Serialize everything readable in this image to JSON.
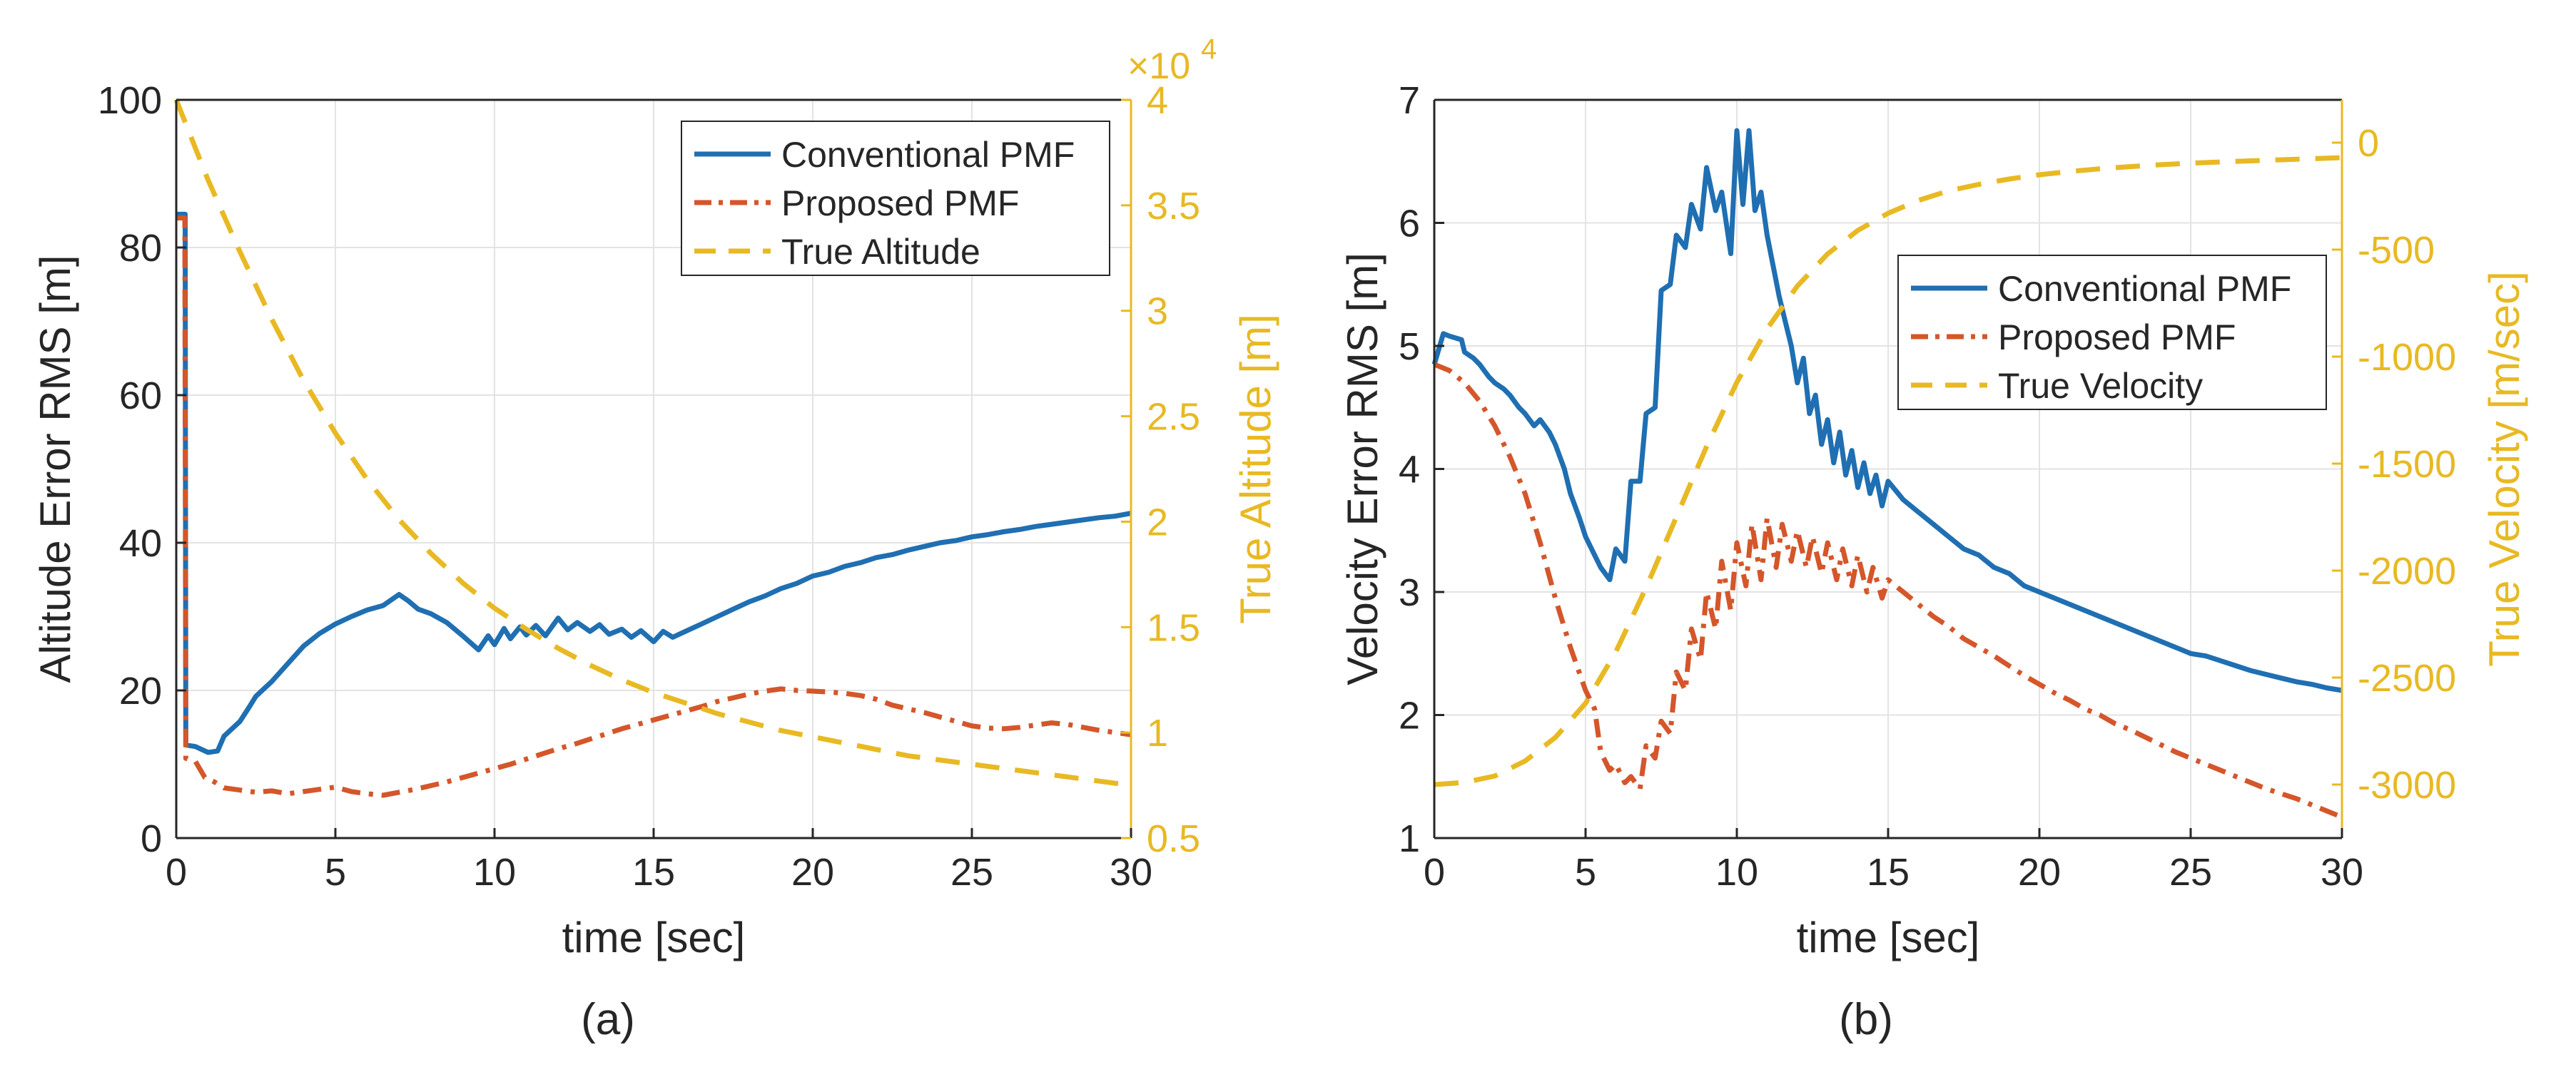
{
  "colors": {
    "conventional": "#1f6fb2",
    "proposed": "#d4562a",
    "true_curve": "#e8b923",
    "axis": "#262626",
    "grid": "#e3e3e3"
  },
  "chart_data": [
    {
      "id": "a",
      "type": "line",
      "caption": "(a)",
      "xlabel": "time [sec]",
      "ylabel": "Altitude Error RMS [m]",
      "y2label": "True Altitude [m]",
      "y2_exponent": "×10",
      "y2_exponent_power": "4",
      "xlim": [
        0,
        30
      ],
      "ylim": [
        0,
        100
      ],
      "y2lim": [
        0.5,
        4
      ],
      "xticks": [
        "0",
        "5",
        "10",
        "15",
        "20",
        "25",
        "30"
      ],
      "yticks": [
        "0",
        "20",
        "40",
        "60",
        "80",
        "100"
      ],
      "y2ticks": [
        "0.5",
        "1",
        "1.5",
        "2",
        "2.5",
        "3",
        "3.5",
        "4"
      ],
      "grid": true,
      "legend_position": "top-right",
      "series": [
        {
          "name": "Conventional PMF",
          "axis": "left",
          "style": "solid",
          "color_key": "conventional",
          "x": [
            0,
            0.28,
            0.28,
            0.3,
            0.3,
            0.6,
            1.0,
            1.3,
            1.5,
            2.0,
            2.3,
            2.5,
            3.0,
            3.5,
            4.0,
            4.5,
            5.0,
            5.5,
            6.0,
            6.5,
            7.0,
            7.3,
            7.6,
            8.0,
            8.5,
            9.0,
            9.5,
            9.8,
            10.0,
            10.3,
            10.5,
            10.8,
            11.0,
            11.3,
            11.6,
            12.0,
            12.3,
            12.6,
            13.0,
            13.3,
            13.6,
            14.0,
            14.3,
            14.6,
            15.0,
            15.3,
            15.6,
            16.0,
            16.5,
            17.0,
            17.5,
            18.0,
            18.5,
            19.0,
            19.5,
            20.0,
            20.5,
            21.0,
            21.5,
            22.0,
            22.5,
            23.0,
            23.5,
            24.0,
            24.5,
            25.0,
            25.5,
            26.0,
            26.5,
            27.0,
            27.5,
            28.0,
            28.5,
            29.0,
            29.5,
            30.0
          ],
          "y": [
            84.5,
            84.5,
            84.5,
            12.6,
            12.6,
            12.4,
            11.6,
            11.8,
            13.8,
            15.8,
            17.8,
            19.2,
            21.2,
            23.6,
            26.0,
            27.7,
            29.0,
            30.0,
            30.9,
            31.5,
            33.0,
            32.1,
            31.0,
            30.4,
            29.2,
            27.4,
            25.5,
            27.4,
            26.2,
            28.4,
            27.0,
            28.6,
            27.5,
            28.8,
            27.4,
            29.8,
            28.2,
            29.2,
            28.0,
            28.9,
            27.6,
            28.3,
            27.2,
            28.1,
            26.6,
            28.0,
            27.2,
            28.0,
            29.0,
            30.0,
            31.0,
            32.0,
            32.8,
            33.8,
            34.5,
            35.5,
            36.0,
            36.8,
            37.3,
            38.0,
            38.4,
            39.0,
            39.5,
            40.0,
            40.3,
            40.8,
            41.1,
            41.5,
            41.8,
            42.2,
            42.5,
            42.8,
            43.1,
            43.4,
            43.6,
            44.0
          ]
        },
        {
          "name": "Proposed PMF",
          "axis": "left",
          "style": "dashdot",
          "color_key": "proposed",
          "x": [
            0,
            0.27,
            0.27,
            0.3,
            0.3,
            0.6,
            0.9,
            1.2,
            1.5,
            2.0,
            2.5,
            3.0,
            3.5,
            4.0,
            4.5,
            5.0,
            5.5,
            6.0,
            6.5,
            7.0,
            7.5,
            8.0,
            8.5,
            9.0,
            9.5,
            10.0,
            10.5,
            11.0,
            11.5,
            12.0,
            12.5,
            13.0,
            13.5,
            14.0,
            14.5,
            15.0,
            15.5,
            16.0,
            16.5,
            17.0,
            17.5,
            18.0,
            18.5,
            19.0,
            19.5,
            20.0,
            20.5,
            21.0,
            21.5,
            22.0,
            22.5,
            23.0,
            23.5,
            24.0,
            24.5,
            25.0,
            25.5,
            26.0,
            26.5,
            27.0,
            27.5,
            28.0,
            28.5,
            29.0,
            29.5,
            30.0
          ],
          "y": [
            84.0,
            84.0,
            84.0,
            10.8,
            10.8,
            10.4,
            8.2,
            7.6,
            6.8,
            6.5,
            6.2,
            6.4,
            6.0,
            6.3,
            6.6,
            6.9,
            6.3,
            6.0,
            5.8,
            6.2,
            6.6,
            7.1,
            7.6,
            8.2,
            8.8,
            9.4,
            10.0,
            10.7,
            11.4,
            12.1,
            12.7,
            13.4,
            14.1,
            14.8,
            15.4,
            16.0,
            16.6,
            17.2,
            17.8,
            18.5,
            19.0,
            19.5,
            19.9,
            20.2,
            20.0,
            19.9,
            19.8,
            19.6,
            19.3,
            18.8,
            18.0,
            17.5,
            17.0,
            16.4,
            15.8,
            15.2,
            14.9,
            14.8,
            15.0,
            15.3,
            15.6,
            15.4,
            15.0,
            14.6,
            14.3,
            14.0
          ]
        },
        {
          "name": "True Altitude",
          "axis": "right",
          "style": "dashed",
          "color_key": "true_curve",
          "x": [
            0,
            1,
            2,
            3,
            4,
            5,
            6,
            7,
            8,
            9,
            10,
            11,
            12,
            13,
            14,
            15,
            16,
            17,
            18,
            19,
            20,
            21,
            22,
            23,
            24,
            25,
            26,
            27,
            28,
            29,
            30
          ],
          "y": [
            4.0,
            3.62,
            3.28,
            2.96,
            2.67,
            2.42,
            2.2,
            2.01,
            1.85,
            1.71,
            1.59,
            1.49,
            1.4,
            1.32,
            1.25,
            1.19,
            1.14,
            1.09,
            1.05,
            1.01,
            0.98,
            0.95,
            0.92,
            0.89,
            0.87,
            0.85,
            0.83,
            0.81,
            0.79,
            0.77,
            0.75
          ]
        }
      ]
    },
    {
      "id": "b",
      "type": "line",
      "caption": "(b)",
      "xlabel": "time [sec]",
      "ylabel": "Velocity Error RMS [m]",
      "y2label": "True Velocity [m/sec]",
      "xlim": [
        0,
        30
      ],
      "ylim": [
        1,
        7
      ],
      "y2lim": [
        -3250,
        200
      ],
      "xticks": [
        "0",
        "5",
        "10",
        "15",
        "20",
        "25",
        "30"
      ],
      "yticks": [
        "1",
        "2",
        "3",
        "4",
        "5",
        "6",
        "7"
      ],
      "y2ticks": [
        "-3000",
        "-2500",
        "-2000",
        "-1500",
        "-1000",
        "-500",
        "0"
      ],
      "grid": true,
      "legend_position": "middle-right",
      "series": [
        {
          "name": "Conventional PMF",
          "axis": "left",
          "style": "solid",
          "color_key": "conventional",
          "x": [
            0,
            0.3,
            0.5,
            0.9,
            1.0,
            1.3,
            1.5,
            1.8,
            2.0,
            2.3,
            2.5,
            2.8,
            3.0,
            3.3,
            3.5,
            3.8,
            4.0,
            4.3,
            4.5,
            4.8,
            5.0,
            5.3,
            5.5,
            5.8,
            6.0,
            6.3,
            6.5,
            6.8,
            7.0,
            7.3,
            7.5,
            7.8,
            8.0,
            8.3,
            8.5,
            8.8,
            9.0,
            9.3,
            9.5,
            9.8,
            10.0,
            10.2,
            10.4,
            10.6,
            10.8,
            11.0,
            11.2,
            11.4,
            11.6,
            11.8,
            12.0,
            12.2,
            12.4,
            12.6,
            12.8,
            13.0,
            13.2,
            13.4,
            13.6,
            13.8,
            14.0,
            14.2,
            14.4,
            14.6,
            14.8,
            15.0,
            15.5,
            16.0,
            16.5,
            17.0,
            17.5,
            18.0,
            18.5,
            19.0,
            19.5,
            20.0,
            20.5,
            21.0,
            21.5,
            22.0,
            22.5,
            23.0,
            23.5,
            24.0,
            24.5,
            25.0,
            25.5,
            26.0,
            26.5,
            27.0,
            27.5,
            28.0,
            28.5,
            29.0,
            29.5,
            30.0
          ],
          "y": [
            4.85,
            5.1,
            5.08,
            5.05,
            4.95,
            4.9,
            4.85,
            4.75,
            4.7,
            4.65,
            4.6,
            4.5,
            4.45,
            4.35,
            4.4,
            4.3,
            4.2,
            4.0,
            3.8,
            3.6,
            3.45,
            3.3,
            3.2,
            3.1,
            3.35,
            3.25,
            3.9,
            3.9,
            4.45,
            4.5,
            5.45,
            5.5,
            5.9,
            5.8,
            6.15,
            5.95,
            6.45,
            6.1,
            6.25,
            5.75,
            6.75,
            6.15,
            6.75,
            6.1,
            6.25,
            5.9,
            5.65,
            5.4,
            5.2,
            5.0,
            4.7,
            4.9,
            4.45,
            4.6,
            4.2,
            4.4,
            4.05,
            4.3,
            3.95,
            4.15,
            3.85,
            4.05,
            3.8,
            3.95,
            3.7,
            3.9,
            3.75,
            3.65,
            3.55,
            3.45,
            3.35,
            3.3,
            3.2,
            3.15,
            3.05,
            3.0,
            2.95,
            2.9,
            2.85,
            2.8,
            2.75,
            2.7,
            2.65,
            2.6,
            2.55,
            2.5,
            2.48,
            2.44,
            2.4,
            2.36,
            2.33,
            2.3,
            2.27,
            2.25,
            2.22,
            2.2
          ]
        },
        {
          "name": "Proposed PMF",
          "axis": "left",
          "style": "dashdot",
          "color_key": "proposed",
          "x": [
            0,
            0.5,
            1.0,
            1.5,
            2.0,
            2.5,
            3.0,
            3.5,
            4.0,
            4.5,
            5.0,
            5.3,
            5.5,
            5.8,
            6.0,
            6.3,
            6.5,
            6.8,
            7.0,
            7.3,
            7.5,
            7.8,
            8.0,
            8.3,
            8.5,
            8.8,
            9.0,
            9.3,
            9.5,
            9.8,
            10.0,
            10.3,
            10.5,
            10.8,
            11.0,
            11.3,
            11.5,
            11.8,
            12.0,
            12.3,
            12.5,
            12.8,
            13.0,
            13.3,
            13.5,
            13.8,
            14.0,
            14.3,
            14.5,
            14.8,
            15.0,
            15.5,
            16.0,
            16.5,
            17.0,
            17.5,
            18.0,
            18.5,
            19.0,
            19.5,
            20.0,
            20.5,
            21.0,
            21.5,
            22.0,
            22.5,
            23.0,
            23.5,
            24.0,
            24.5,
            25.0,
            25.5,
            26.0,
            26.5,
            27.0,
            27.5,
            28.0,
            28.5,
            29.0,
            29.5,
            30.0
          ],
          "y": [
            4.85,
            4.8,
            4.7,
            4.55,
            4.35,
            4.1,
            3.8,
            3.4,
            2.95,
            2.55,
            2.2,
            2.05,
            1.7,
            1.55,
            1.6,
            1.45,
            1.5,
            1.4,
            1.75,
            1.65,
            1.95,
            1.85,
            2.35,
            2.2,
            2.7,
            2.45,
            3.0,
            2.7,
            3.25,
            2.85,
            3.4,
            3.05,
            3.55,
            3.1,
            3.6,
            3.2,
            3.55,
            3.25,
            3.5,
            3.2,
            3.45,
            3.15,
            3.4,
            3.1,
            3.35,
            3.05,
            3.3,
            3.0,
            3.2,
            2.95,
            3.1,
            3.0,
            2.9,
            2.8,
            2.72,
            2.62,
            2.55,
            2.48,
            2.4,
            2.32,
            2.25,
            2.18,
            2.12,
            2.05,
            2.0,
            1.93,
            1.88,
            1.82,
            1.76,
            1.7,
            1.65,
            1.6,
            1.55,
            1.5,
            1.45,
            1.4,
            1.36,
            1.32,
            1.27,
            1.22,
            1.17
          ]
        },
        {
          "name": "True Velocity",
          "axis": "right",
          "style": "dashed",
          "color_key": "true_curve",
          "x": [
            0,
            1,
            2,
            3,
            4,
            5,
            6,
            7,
            8,
            9,
            10,
            11,
            12,
            13,
            14,
            15,
            16,
            17,
            18,
            19,
            20,
            21,
            22,
            23,
            24,
            25,
            26,
            27,
            28,
            29,
            30
          ],
          "y": [
            -3000,
            -2990,
            -2960,
            -2890,
            -2780,
            -2620,
            -2380,
            -2080,
            -1750,
            -1420,
            -1120,
            -870,
            -670,
            -520,
            -410,
            -330,
            -270,
            -225,
            -195,
            -170,
            -150,
            -135,
            -122,
            -112,
            -103,
            -96,
            -90,
            -85,
            -80,
            -75,
            -70
          ]
        }
      ]
    }
  ]
}
